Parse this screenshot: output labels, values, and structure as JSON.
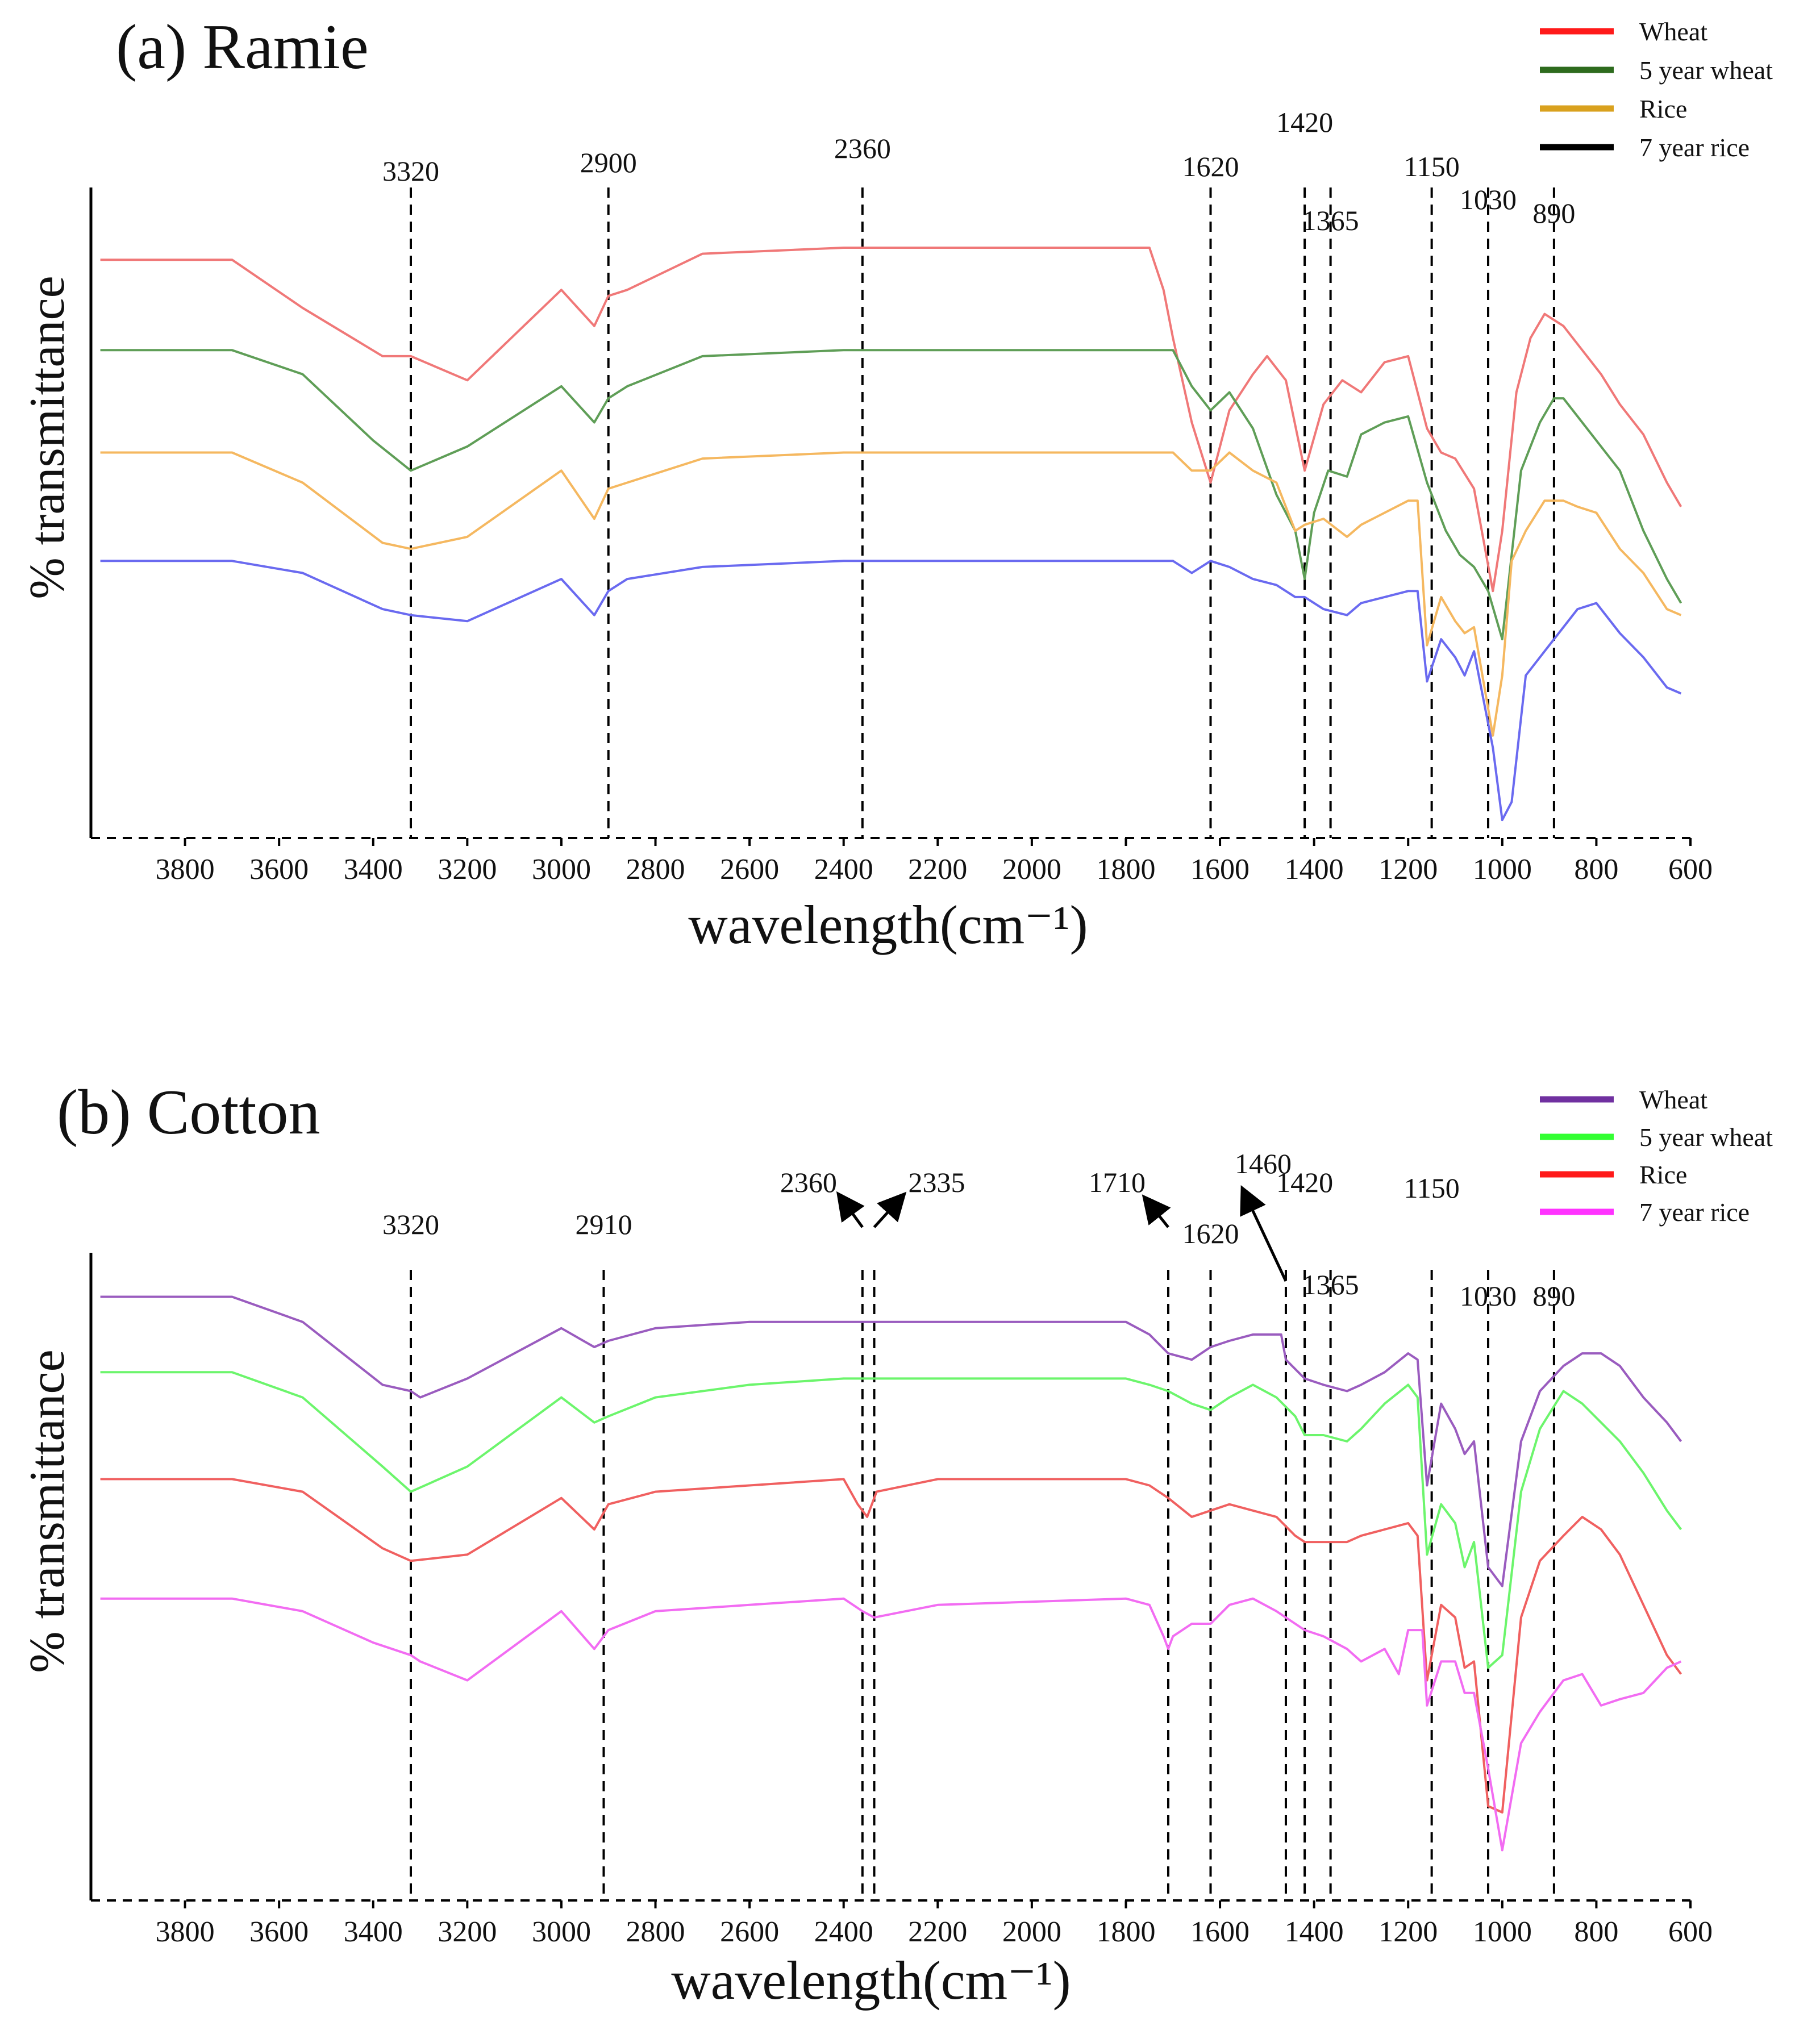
{
  "chart_data": [
    {
      "type": "line",
      "title": "(a) Ramie",
      "xlabel": "wavelength(cm⁻¹)",
      "ylabel": "% transmittance",
      "xlim": [
        4000,
        600
      ],
      "xticks": [
        3800,
        3600,
        3400,
        3200,
        3000,
        2800,
        2600,
        2400,
        2200,
        2000,
        1800,
        1600,
        1400,
        1200,
        1000,
        800,
        600
      ],
      "grid": false,
      "legend_position": "top-right",
      "legend": [
        {
          "name": "Wheat",
          "color": "#ff1a1a"
        },
        {
          "name": "5 year wheat",
          "color": "#2e6b1e"
        },
        {
          "name": "Rice",
          "color": "#d9a11e"
        },
        {
          "name": "7 year rice",
          "color": "#000000"
        }
      ],
      "peaks": [
        {
          "x": 3320,
          "label": "3320"
        },
        {
          "x": 2900,
          "label": "2900"
        },
        {
          "x": 2360,
          "label": "2360"
        },
        {
          "x": 1620,
          "label": "1620"
        },
        {
          "x": 1420,
          "label": "1420"
        },
        {
          "x": 1365,
          "label": "1365"
        },
        {
          "x": 1150,
          "label": "1150"
        },
        {
          "x": 1030,
          "label": "1030"
        },
        {
          "x": 890,
          "label": "890"
        }
      ],
      "series": [
        {
          "name": "Wheat",
          "color": "#f07878",
          "x": [
            3980,
            3700,
            3550,
            3380,
            3320,
            3200,
            3000,
            2930,
            2900,
            2860,
            2700,
            2400,
            2360,
            2200,
            1750,
            1720,
            1700,
            1660,
            1620,
            1580,
            1530,
            1500,
            1460,
            1420,
            1380,
            1340,
            1300,
            1250,
            1200,
            1160,
            1130,
            1100,
            1060,
            1020,
            1000,
            970,
            940,
            910,
            870,
            830,
            790,
            750,
            700,
            650,
            620
          ],
          "values": [
            93,
            93,
            85,
            77,
            77,
            73,
            88,
            82,
            87,
            88,
            94,
            95,
            95,
            95,
            95,
            88,
            80,
            66,
            56,
            68,
            74,
            77,
            73,
            58,
            69,
            73,
            71,
            76,
            77,
            65,
            61,
            60,
            55,
            38,
            48,
            71,
            80,
            84,
            82,
            78,
            74,
            69,
            64,
            56,
            52
          ]
        },
        {
          "name": "5 year wheat",
          "color": "#5f9e57",
          "x": [
            3980,
            3700,
            3550,
            3400,
            3320,
            3200,
            3000,
            2930,
            2900,
            2860,
            2700,
            2400,
            2360,
            2200,
            1700,
            1660,
            1620,
            1580,
            1530,
            1480,
            1440,
            1420,
            1400,
            1370,
            1330,
            1300,
            1250,
            1200,
            1160,
            1120,
            1090,
            1060,
            1030,
            1000,
            960,
            920,
            890,
            870,
            840,
            800,
            750,
            700,
            650,
            620
          ],
          "values": [
            78,
            78,
            74,
            63,
            58,
            62,
            72,
            66,
            70,
            72,
            77,
            78,
            78,
            78,
            78,
            72,
            68,
            71,
            65,
            54,
            48,
            40,
            51,
            58,
            57,
            64,
            66,
            67,
            56,
            48,
            44,
            42,
            38,
            30,
            58,
            66,
            70,
            70,
            67,
            63,
            58,
            48,
            40,
            36
          ]
        },
        {
          "name": "Rice",
          "color": "#f5b860",
          "x": [
            3980,
            3700,
            3550,
            3380,
            3320,
            3200,
            3000,
            2930,
            2900,
            2860,
            2700,
            2400,
            2360,
            2200,
            1700,
            1660,
            1620,
            1580,
            1530,
            1480,
            1440,
            1420,
            1380,
            1330,
            1300,
            1250,
            1200,
            1180,
            1160,
            1130,
            1100,
            1080,
            1060,
            1020,
            1000,
            980,
            950,
            910,
            870,
            840,
            800,
            750,
            700,
            650,
            620
          ],
          "values": [
            61,
            61,
            56,
            46,
            45,
            47,
            58,
            50,
            55,
            56,
            60,
            61,
            61,
            61,
            61,
            58,
            58,
            61,
            58,
            56,
            48,
            49,
            50,
            47,
            49,
            51,
            53,
            53,
            29,
            37,
            33,
            31,
            32,
            14,
            24,
            43,
            48,
            53,
            53,
            52,
            51,
            45,
            41,
            35,
            34
          ]
        },
        {
          "name": "7 year rice",
          "color": "#6a6af0",
          "x": [
            3980,
            3700,
            3550,
            3380,
            3320,
            3200,
            3000,
            2930,
            2900,
            2860,
            2700,
            2400,
            2360,
            2200,
            1700,
            1660,
            1620,
            1580,
            1530,
            1480,
            1440,
            1420,
            1380,
            1330,
            1300,
            1250,
            1200,
            1180,
            1160,
            1130,
            1100,
            1080,
            1060,
            1020,
            1000,
            980,
            950,
            910,
            870,
            840,
            800,
            750,
            700,
            650,
            620
          ],
          "values": [
            43,
            43,
            41,
            35,
            34,
            33,
            40,
            34,
            38,
            40,
            42,
            43,
            43,
            43,
            43,
            41,
            43,
            42,
            40,
            39,
            37,
            37,
            35,
            34,
            36,
            37,
            38,
            38,
            23,
            30,
            27,
            24,
            28,
            12,
            0,
            3,
            24,
            28,
            32,
            35,
            36,
            31,
            27,
            22,
            21
          ]
        }
      ]
    },
    {
      "type": "line",
      "title": "(b) Cotton",
      "xlabel": "wavelength(cm⁻¹)",
      "ylabel": "% transmittance",
      "xlim": [
        4000,
        600
      ],
      "xticks": [
        3800,
        3600,
        3400,
        3200,
        3000,
        2800,
        2600,
        2400,
        2200,
        2000,
        1800,
        1600,
        1400,
        1200,
        1000,
        800,
        600
      ],
      "grid": false,
      "legend_position": "top-right",
      "legend": [
        {
          "name": "Wheat",
          "color": "#7030a0"
        },
        {
          "name": "5 year wheat",
          "color": "#33ff33"
        },
        {
          "name": "Rice",
          "color": "#ff1a1a"
        },
        {
          "name": "7 year rice",
          "color": "#ff33ff"
        }
      ],
      "peaks": [
        {
          "x": 3320,
          "label": "3320"
        },
        {
          "x": 2910,
          "label": "2910"
        },
        {
          "x": 2360,
          "label": "2360"
        },
        {
          "x": 2335,
          "label": "2335"
        },
        {
          "x": 1710,
          "label": "1710"
        },
        {
          "x": 1620,
          "label": "1620"
        },
        {
          "x": 1460,
          "label": "1460"
        },
        {
          "x": 1420,
          "label": "1420"
        },
        {
          "x": 1365,
          "label": "1365"
        },
        {
          "x": 1150,
          "label": "1150"
        },
        {
          "x": 1030,
          "label": "1030"
        },
        {
          "x": 890,
          "label": "890"
        }
      ],
      "series": [
        {
          "name": "Wheat",
          "color": "#9a5cbf",
          "x": [
            3980,
            3700,
            3550,
            3380,
            3320,
            3300,
            3200,
            3000,
            2930,
            2900,
            2800,
            2600,
            2400,
            2200,
            1800,
            1750,
            1710,
            1660,
            1620,
            1580,
            1530,
            1470,
            1460,
            1420,
            1380,
            1330,
            1300,
            1250,
            1200,
            1180,
            1160,
            1130,
            1100,
            1080,
            1060,
            1030,
            1000,
            960,
            920,
            870,
            830,
            790,
            750,
            700,
            650,
            620
          ],
          "values": [
            93,
            93,
            89,
            79,
            78,
            77,
            80,
            88,
            85,
            86,
            88,
            89,
            89,
            89,
            89,
            87,
            84,
            83,
            85,
            86,
            87,
            87,
            83,
            80,
            79,
            78,
            79,
            81,
            84,
            83,
            63,
            76,
            72,
            68,
            70,
            50,
            47,
            70,
            78,
            82,
            84,
            84,
            82,
            77,
            73,
            70
          ]
        },
        {
          "name": "5 year wheat",
          "color": "#6cf56c",
          "x": [
            3980,
            3700,
            3550,
            3380,
            3320,
            3200,
            3000,
            2930,
            2900,
            2800,
            2600,
            2400,
            2200,
            1800,
            1750,
            1710,
            1660,
            1620,
            1580,
            1530,
            1480,
            1440,
            1420,
            1380,
            1330,
            1300,
            1250,
            1200,
            1180,
            1160,
            1130,
            1100,
            1080,
            1060,
            1030,
            1000,
            960,
            920,
            870,
            830,
            790,
            750,
            700,
            650,
            620
          ],
          "values": [
            81,
            81,
            77,
            66,
            62,
            66,
            77,
            73,
            74,
            77,
            79,
            80,
            80,
            80,
            79,
            78,
            76,
            75,
            77,
            79,
            77,
            74,
            71,
            71,
            70,
            72,
            76,
            79,
            77,
            52,
            60,
            57,
            50,
            54,
            34,
            36,
            62,
            72,
            78,
            76,
            73,
            70,
            65,
            59,
            56
          ]
        },
        {
          "name": "Rice",
          "color": "#f06060",
          "x": [
            3980,
            3700,
            3550,
            3380,
            3320,
            3200,
            3000,
            2930,
            2900,
            2800,
            2600,
            2400,
            2370,
            2350,
            2330,
            2200,
            1800,
            1750,
            1710,
            1660,
            1620,
            1580,
            1530,
            1480,
            1440,
            1420,
            1380,
            1330,
            1300,
            1250,
            1200,
            1180,
            1160,
            1130,
            1100,
            1080,
            1060,
            1030,
            1000,
            960,
            920,
            870,
            830,
            790,
            750,
            700,
            650,
            620
          ],
          "values": [
            64,
            64,
            62,
            53,
            51,
            52,
            61,
            56,
            60,
            62,
            63,
            64,
            60,
            58,
            62,
            64,
            64,
            63,
            61,
            58,
            59,
            60,
            59,
            58,
            55,
            54,
            54,
            54,
            55,
            56,
            57,
            55,
            32,
            44,
            42,
            34,
            35,
            12,
            11,
            42,
            51,
            55,
            58,
            56,
            52,
            44,
            36,
            33
          ]
        },
        {
          "name": "7 year rice",
          "color": "#f26cf2",
          "x": [
            3980,
            3700,
            3550,
            3400,
            3320,
            3300,
            3200,
            3000,
            2930,
            2900,
            2800,
            2600,
            2400,
            2360,
            2335,
            2200,
            1800,
            1750,
            1720,
            1710,
            1700,
            1660,
            1620,
            1580,
            1530,
            1480,
            1440,
            1420,
            1380,
            1330,
            1300,
            1250,
            1220,
            1200,
            1170,
            1160,
            1130,
            1100,
            1080,
            1060,
            1030,
            1000,
            960,
            920,
            870,
            830,
            790,
            750,
            700,
            650,
            620
          ],
          "values": [
            45,
            45,
            43,
            38,
            36,
            35,
            32,
            43,
            37,
            40,
            43,
            44,
            45,
            43,
            42,
            44,
            45,
            44,
            39,
            37,
            39,
            41,
            41,
            44,
            45,
            43,
            41,
            40,
            39,
            37,
            35,
            37,
            33,
            40,
            40,
            28,
            35,
            35,
            30,
            30,
            18,
            5,
            22,
            27,
            32,
            33,
            28,
            29,
            30,
            34,
            35
          ]
        }
      ]
    }
  ]
}
